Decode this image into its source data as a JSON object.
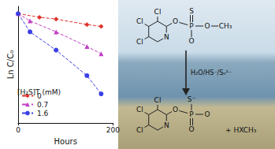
{
  "chart_data": {
    "type": "scatter",
    "x_label": "Hours",
    "y_label": "Ln C/C₀",
    "legend_title": "[H₂S]T (mM)",
    "legend": "lower left",
    "tick_labels": "x",
    "grid": false,
    "xlim": [
      0,
      200
    ],
    "xticks": [
      0,
      200
    ],
    "ylim": [
      -3,
      0.2
    ],
    "series": [
      {
        "name": "0",
        "color": "#e0302a",
        "marker": "diamond",
        "line_style": "dashed",
        "x": [
          0,
          45,
          80,
          145,
          175
        ],
        "values": [
          0,
          -0.1,
          -0.15,
          -0.3,
          -0.35
        ]
      },
      {
        "name": "0.7",
        "color": "#c23fc4",
        "marker": "triangle",
        "line_style": "dashed",
        "x": [
          0,
          25,
          80,
          145,
          175
        ],
        "values": [
          0,
          -0.2,
          -0.5,
          -0.9,
          -1.1
        ]
      },
      {
        "name": "1.6",
        "color": "#3a3fe4",
        "marker": "circle",
        "line_style": "dashed",
        "x": [
          0,
          25,
          80,
          145,
          175
        ],
        "values": [
          0,
          -0.5,
          -1.0,
          -1.7,
          -2.2
        ]
      }
    ]
  },
  "diagram": {
    "reactant": {
      "atoms": [
        "Cl",
        "Cl",
        "Cl",
        "N",
        "O",
        "P",
        "S",
        "O",
        "O",
        "CH₃"
      ]
    },
    "arrow_label": "H₂O/HS⁻/Sₙ²⁻",
    "product": {
      "atoms": [
        "Cl",
        "Cl",
        "Cl",
        "N",
        "O",
        "P",
        "S⁻",
        "O",
        "O"
      ]
    },
    "byproduct": "+ HXCH₃"
  }
}
